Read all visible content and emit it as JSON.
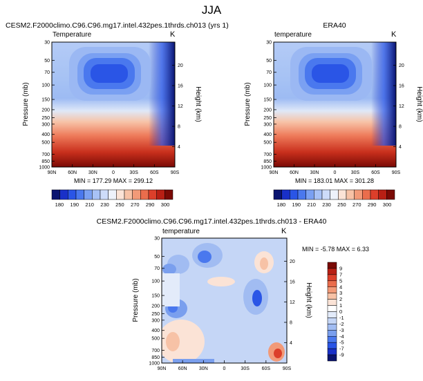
{
  "page": {
    "title": "JJA"
  },
  "chart_data": [
    {
      "type": "heatmap",
      "id": "model",
      "title": "CESM2.F2000climo.C96.C96.mg17.intel.432pes.1thrds.ch013 (yrs 1)",
      "left_label": "Temperature",
      "right_label": "K",
      "ylabel": "Pressure (mb)",
      "y2label": "Height (km)",
      "x_ticks": [
        "90N",
        "60N",
        "30N",
        "0",
        "30S",
        "60S",
        "90S"
      ],
      "y_ticks": [
        "30",
        "50",
        "70",
        "100",
        "150",
        "200",
        "250",
        "300",
        "400",
        "500",
        "700",
        "850",
        "1000"
      ],
      "y2_ticks": [
        "20",
        "16",
        "12",
        "8",
        "4"
      ],
      "stats_text": "MIN = 177.29  MAX = 299.12",
      "min": 177.29,
      "max": 299.12
    },
    {
      "type": "heatmap",
      "id": "obs",
      "title": "ERA40",
      "left_label": "temperature",
      "right_label": "K",
      "ylabel": "Pressure (mb)",
      "y2label": "Height (km)",
      "x_ticks": [
        "90N",
        "60N",
        "30N",
        "0",
        "30S",
        "60S",
        "90S"
      ],
      "y_ticks": [
        "30",
        "50",
        "70",
        "100",
        "150",
        "200",
        "250",
        "300",
        "400",
        "500",
        "700",
        "850",
        "1000"
      ],
      "y2_ticks": [
        "20",
        "16",
        "12",
        "8",
        "4"
      ],
      "stats_text": "MIN = 183.01  MAX = 301.28",
      "min": 183.01,
      "max": 301.28
    },
    {
      "type": "heatmap",
      "id": "diff",
      "title": "CESM2.F2000climo.C96.C96.mg17.intel.432pes.1thrds.ch013 - ERA40",
      "left_label": "temperature",
      "right_label": "K",
      "ylabel": "Pressure (mb)",
      "y2label": "Height (km)",
      "x_ticks": [
        "90N",
        "60N",
        "30N",
        "0",
        "30S",
        "60S",
        "90S"
      ],
      "y_ticks": [
        "30",
        "50",
        "70",
        "100",
        "150",
        "200",
        "250",
        "300",
        "400",
        "500",
        "700",
        "850",
        "1000"
      ],
      "y2_ticks": [
        "20",
        "16",
        "12",
        "8",
        "4"
      ],
      "stats_text": "MIN = -5.78  MAX =   6.33",
      "min": -5.78,
      "max": 6.33
    }
  ],
  "colorbars": {
    "abs": {
      "labels": [
        "180",
        "190",
        "210",
        "230",
        "250",
        "270",
        "290",
        "300"
      ],
      "colors": [
        "#0a1470",
        "#1930c8",
        "#2a55e6",
        "#4a78ee",
        "#7aa0f2",
        "#a8c2f6",
        "#cddcf9",
        "#eef2fb",
        "#fbe3d6",
        "#f7c2a6",
        "#f29a78",
        "#ea6d4c",
        "#dc3f2a",
        "#b81f14",
        "#7a0a05"
      ]
    },
    "diff": {
      "labels": [
        "9",
        "7",
        "5",
        "4",
        "3",
        "2",
        "1",
        "0",
        "-1",
        "-2",
        "-3",
        "-4",
        "-5",
        "-7",
        "-9"
      ],
      "colors": [
        "#7a0a05",
        "#b81f14",
        "#dc3f2a",
        "#ea6d4c",
        "#f29a78",
        "#f7c2a6",
        "#fbe3d6",
        "#ffffff",
        "#e3ebfa",
        "#c5d6f6",
        "#a1bcf2",
        "#7a9fee",
        "#4a78ee",
        "#2a55e6",
        "#1930c8",
        "#0a1470"
      ]
    }
  }
}
